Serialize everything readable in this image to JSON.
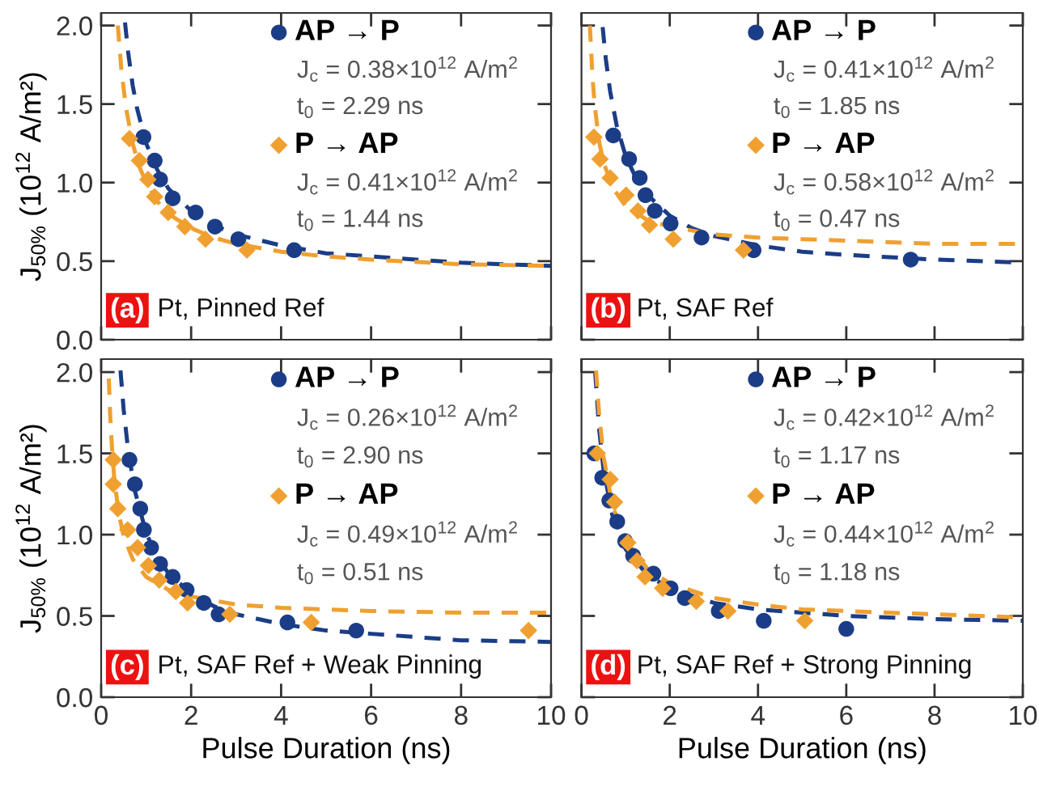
{
  "chart_data": [
    {
      "type": "scatter",
      "ylabel": "J$_{50%}$ (10$^{12}$ A/m²)",
      "xlim": [
        0,
        10
      ],
      "ylim": [
        0,
        2.08
      ],
      "xticks": [
        0,
        2,
        4,
        6,
        8,
        10
      ],
      "yticks": [
        {
          "value": 0,
          "label": "0.0"
        },
        0.5,
        {
          "value": 1,
          "label": "1.0"
        },
        1.5,
        {
          "value": 2,
          "label": "2.0"
        }
      ],
      "tick_labels": "y",
      "legend": "top right",
      "grid": false,
      "annotations": [
        "(a)",
        "Pt, Pinned Ref",
        "J$_{c}$ = 0.38×10$^{12}$ A/m$^{2}$",
        "t$_{0}$ = 2.29 ns",
        "J$_{c}$ = 0.41×10$^{12}$ A/m$^{2}$",
        "t$_{0}$ = 1.44 ns"
      ],
      "series": [
        {
          "name": "AP → P",
          "marker": "circle",
          "color": "#1b3d87",
          "x": [
            0.94,
            1.19,
            1.31,
            1.59,
            2.1,
            2.53,
            3.05,
            4.29
          ],
          "values": [
            1.29,
            1.14,
            1.02,
            0.9,
            0.81,
            0.72,
            0.64,
            0.57
          ]
        },
        {
          "name": "P → AP",
          "marker": "diamond",
          "color": "#f0a030",
          "x": [
            0.63,
            0.85,
            1.04,
            1.19,
            1.49,
            1.86,
            2.32,
            3.24
          ],
          "values": [
            1.28,
            1.14,
            1.02,
            0.91,
            0.81,
            0.72,
            0.64,
            0.57
          ]
        },
        {
          "type": "line",
          "line_style": "dashed",
          "color": "#1b3d87",
          "x": [
            0.53,
            0.6,
            0.7,
            0.8,
            1,
            1.25,
            1.5,
            2,
            2.5,
            3,
            4,
            5,
            6,
            8,
            10
          ],
          "values": [
            2.02,
            1.83,
            1.62,
            1.47,
            1.25,
            1.08,
            0.96,
            0.82,
            0.73,
            0.67,
            0.6,
            0.55,
            0.53,
            0.49,
            0.47
          ]
        },
        {
          "type": "line",
          "line_style": "dashed",
          "color": "#f0a030",
          "x": [
            0.37,
            0.45,
            0.55,
            0.7,
            0.85,
            1,
            1.25,
            1.5,
            2,
            2.5,
            3,
            4,
            5,
            6,
            8,
            10
          ],
          "values": [
            2.0,
            1.72,
            1.48,
            1.25,
            1.1,
            1.0,
            0.88,
            0.8,
            0.71,
            0.65,
            0.61,
            0.56,
            0.53,
            0.51,
            0.48,
            0.47
          ]
        }
      ]
    },
    {
      "type": "scatter",
      "xlim": [
        0,
        10
      ],
      "ylim": [
        0,
        2.08
      ],
      "xticks": [
        0,
        2,
        4,
        6,
        8,
        10
      ],
      "yticks": [
        0,
        0.5,
        1,
        1.5,
        2
      ],
      "tick_labels": false,
      "legend": "top right",
      "grid": false,
      "annotations": [
        "(b)",
        "Pt, SAF Ref",
        "J$_{c}$ = 0.41×10$^{12}$ A/m$^{2}$",
        "t$_{0}$ = 1.85 ns",
        "J$_{c}$ = 0.58×10$^{12}$ A/m$^{2}$",
        "t$_{0}$ = 0.47 ns"
      ],
      "series": [
        {
          "name": "AP → P",
          "marker": "circle",
          "color": "#1b3d87",
          "x": [
            0.72,
            1.08,
            1.32,
            1.45,
            1.66,
            2.02,
            2.72,
            3.9,
            7.46
          ],
          "values": [
            1.3,
            1.15,
            1.03,
            0.92,
            0.82,
            0.74,
            0.65,
            0.57,
            0.51
          ]
        },
        {
          "name": "P → AP",
          "marker": "diamond",
          "color": "#f0a030",
          "x": [
            0.28,
            0.42,
            0.65,
            1.01,
            1.28,
            1.54,
            2.08,
            3.67
          ],
          "values": [
            1.29,
            1.15,
            1.03,
            0.92,
            0.82,
            0.73,
            0.64,
            0.57
          ]
        },
        {
          "type": "line",
          "line_style": "dashed",
          "color": "#1b3d87",
          "x": [
            0.48,
            0.55,
            0.65,
            0.8,
            1,
            1.25,
            1.5,
            2,
            2.5,
            3,
            4,
            5,
            6,
            8,
            10
          ],
          "values": [
            1.99,
            1.79,
            1.58,
            1.36,
            1.17,
            1.02,
            0.92,
            0.79,
            0.71,
            0.66,
            0.6,
            0.56,
            0.54,
            0.51,
            0.49
          ]
        },
        {
          "type": "line",
          "line_style": "dashed",
          "color": "#f0a030",
          "x": [
            0.19,
            0.25,
            0.3,
            0.4,
            0.5,
            0.7,
            1,
            1.5,
            2,
            3,
            4,
            5,
            6,
            8,
            10
          ],
          "values": [
            2.0,
            1.67,
            1.49,
            1.26,
            1.13,
            0.97,
            0.85,
            0.76,
            0.72,
            0.67,
            0.65,
            0.64,
            0.63,
            0.61,
            0.61
          ]
        }
      ]
    },
    {
      "type": "scatter",
      "xlabel": "Pulse Duration (ns)",
      "ylabel": "J$_{50%}$ (10$^{12}$ A/m²)",
      "xlim": [
        0,
        10
      ],
      "ylim": [
        0,
        2.08
      ],
      "xticks": [
        0,
        2,
        4,
        6,
        8,
        10
      ],
      "yticks": [
        {
          "value": 0,
          "label": "0.0"
        },
        0.5,
        {
          "value": 1,
          "label": "1.0"
        },
        1.5,
        {
          "value": 2,
          "label": "2.0"
        }
      ],
      "legend": "top right",
      "grid": false,
      "annotations": [
        "(c)",
        "Pt, SAF Ref + Weak Pinning",
        "J$_{c}$ = 0.26×10$^{12}$ A/m$^{2}$",
        "t$_{0}$ = 2.90 ns",
        "J$_{c}$ = 0.49×10$^{12}$ A/m$^{2}$",
        "t$_{0}$ = 0.51 ns"
      ],
      "series": [
        {
          "name": "AP → P",
          "marker": "circle",
          "color": "#1b3d87",
          "x": [
            0.63,
            0.75,
            0.87,
            0.95,
            1.11,
            1.31,
            1.59,
            1.9,
            2.28,
            2.61,
            4.14,
            5.67
          ],
          "values": [
            1.46,
            1.31,
            1.16,
            1.03,
            0.92,
            0.82,
            0.74,
            0.66,
            0.58,
            0.51,
            0.46,
            0.41
          ]
        },
        {
          "name": "P → AP",
          "marker": "diamond",
          "color": "#f0a030",
          "x": [
            0.27,
            0.27,
            0.37,
            0.59,
            0.81,
            1.05,
            1.29,
            1.66,
            1.92,
            2.86,
            4.67,
            9.5
          ],
          "values": [
            1.46,
            1.31,
            1.16,
            1.03,
            0.92,
            0.81,
            0.72,
            0.65,
            0.58,
            0.51,
            0.46,
            0.41
          ]
        },
        {
          "type": "line",
          "line_style": "dashed",
          "color": "#1b3d87",
          "x": [
            0.43,
            0.5,
            0.6,
            0.75,
            1,
            1.25,
            1.5,
            2,
            2.5,
            3,
            4,
            5,
            6,
            8,
            10
          ],
          "values": [
            2.01,
            1.77,
            1.52,
            1.27,
            1.01,
            0.86,
            0.76,
            0.64,
            0.56,
            0.51,
            0.45,
            0.41,
            0.39,
            0.35,
            0.34
          ]
        },
        {
          "type": "line",
          "line_style": "dashed",
          "color": "#f0a030",
          "x": [
            0.17,
            0.2,
            0.25,
            0.3,
            0.4,
            0.5,
            0.7,
            1,
            1.5,
            2,
            3,
            4,
            6,
            8,
            10
          ],
          "values": [
            1.96,
            1.74,
            1.49,
            1.32,
            1.12,
            0.99,
            0.85,
            0.74,
            0.66,
            0.62,
            0.57,
            0.55,
            0.53,
            0.52,
            0.52
          ]
        }
      ]
    },
    {
      "type": "scatter",
      "xlabel": "Pulse Duration (ns)",
      "xlim": [
        0,
        10
      ],
      "ylim": [
        0,
        2.08
      ],
      "xticks": [
        0,
        2,
        4,
        6,
        8,
        10
      ],
      "yticks": [
        0,
        0.5,
        1,
        1.5,
        2
      ],
      "tick_labels": "x",
      "legend": "top right",
      "grid": false,
      "annotations": [
        "(d)",
        "Pt, SAF Ref + Strong Pinning",
        "J$_{c}$ = 0.42×10$^{12}$ A/m$^{2}$",
        "t$_{0}$ = 1.17 ns",
        "J$_{c}$ = 0.44×10$^{12}$ A/m$^{2}$",
        "t$_{0}$ = 1.18 ns"
      ],
      "series": [
        {
          "name": "AP → P",
          "marker": "circle",
          "color": "#1b3d87",
          "x": [
            0.29,
            0.47,
            0.63,
            0.81,
            0.99,
            1.17,
            1.63,
            2.02,
            2.34,
            3.11,
            4.13,
            6.0
          ],
          "values": [
            1.5,
            1.35,
            1.21,
            1.08,
            0.96,
            0.87,
            0.76,
            0.67,
            0.61,
            0.53,
            0.47,
            0.42
          ]
        },
        {
          "name": "P → AP",
          "marker": "diamond",
          "color": "#f0a030",
          "x": [
            0.36,
            0.65,
            0.75,
            1.05,
            1.26,
            1.44,
            1.84,
            2.6,
            3.32,
            5.06
          ],
          "values": [
            1.5,
            1.34,
            1.2,
            0.95,
            0.84,
            0.74,
            0.67,
            0.59,
            0.53,
            0.47
          ]
        },
        {
          "type": "line",
          "line_style": "dashed",
          "color": "#1b3d87",
          "x": [
            0.31,
            0.4,
            0.5,
            0.7,
            1,
            1.5,
            2,
            3,
            4,
            5,
            6,
            8,
            10
          ],
          "values": [
            2.0,
            1.65,
            1.4,
            1.12,
            0.91,
            0.75,
            0.67,
            0.58,
            0.54,
            0.52,
            0.5,
            0.48,
            0.47
          ]
        },
        {
          "type": "line",
          "line_style": "dashed",
          "color": "#f0a030",
          "x": [
            0.33,
            0.4,
            0.5,
            0.7,
            1,
            1.5,
            2,
            3,
            4,
            5,
            6,
            8,
            10
          ],
          "values": [
            2.01,
            1.74,
            1.48,
            1.18,
            0.96,
            0.79,
            0.7,
            0.61,
            0.57,
            0.54,
            0.53,
            0.51,
            0.49
          ]
        }
      ]
    }
  ]
}
